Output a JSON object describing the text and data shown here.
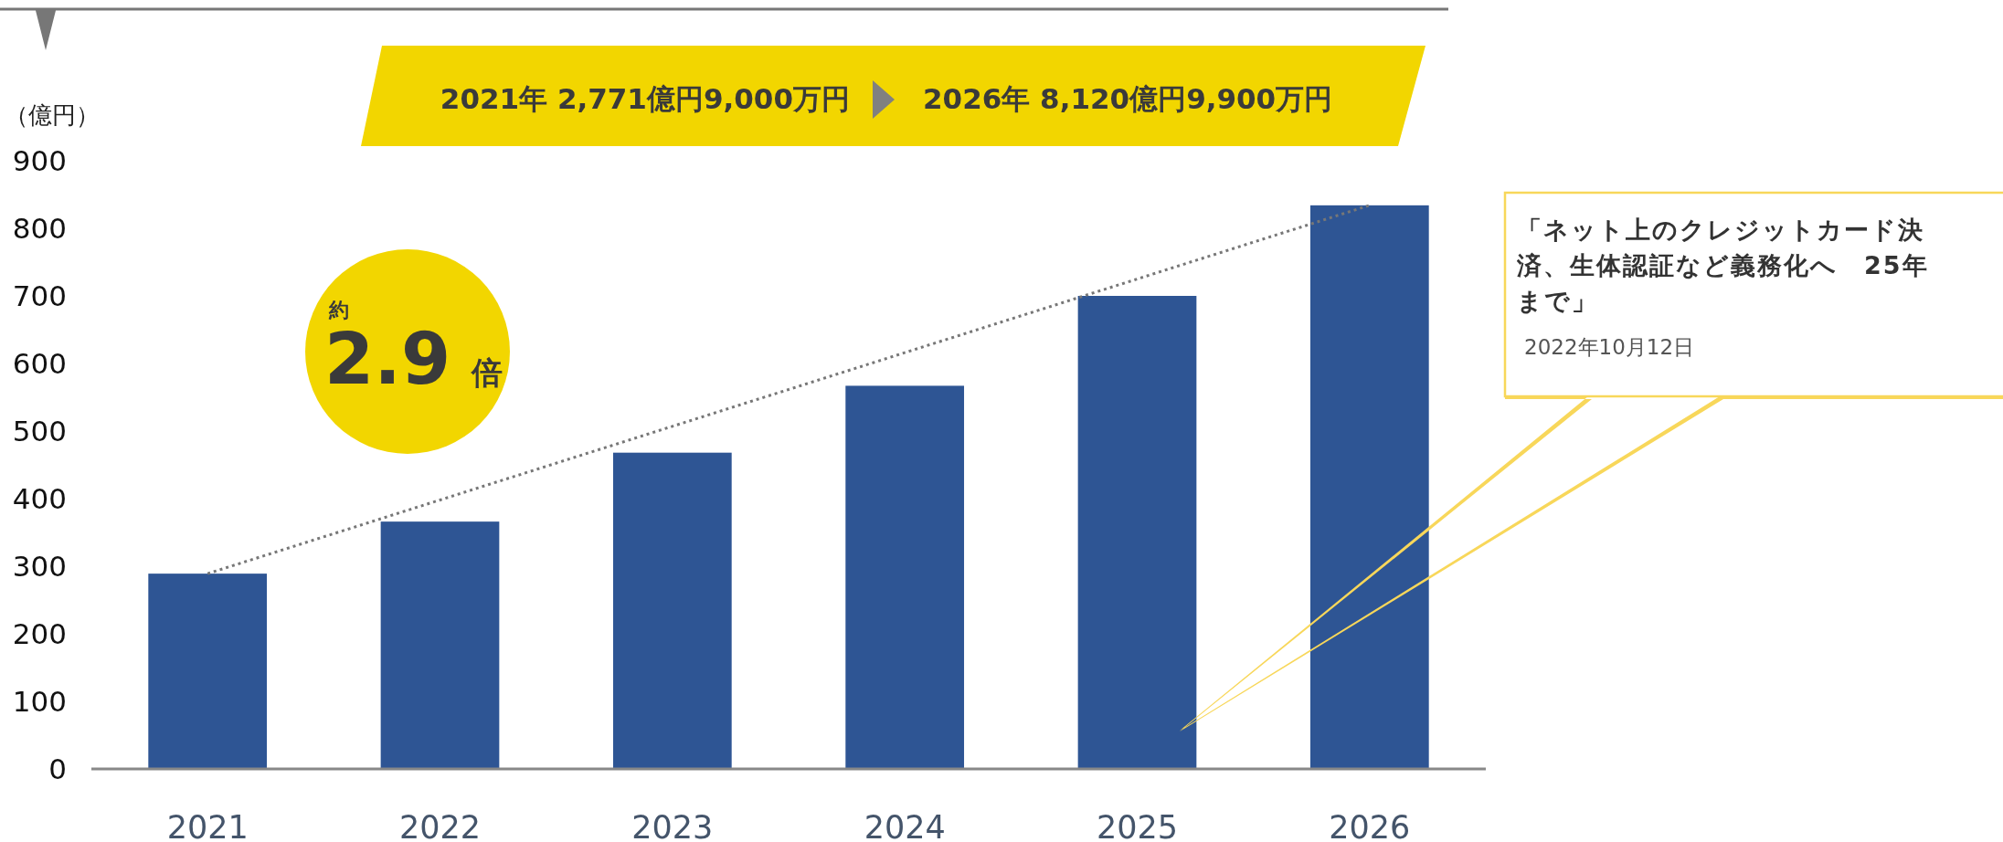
{
  "chart_data": {
    "type": "bar",
    "ylabel": "（億円）",
    "categories": [
      "2021",
      "2022",
      "2023",
      "2024",
      "2025",
      "2026"
    ],
    "values": [
      289,
      366,
      468,
      567,
      700,
      834
    ],
    "color": "#2e5594",
    "ylim": [
      0,
      900
    ],
    "yticks": [
      0,
      100,
      200,
      300,
      400,
      500,
      600,
      700,
      800,
      900
    ],
    "series": [
      {
        "type": "line",
        "values": [
          289,
          398,
          507,
          616,
          725,
          834
        ],
        "color": "#777777",
        "line_style": "dotted"
      }
    ],
    "annotations": [
      "2021年 2,771億円9,000万円",
      "2026年 8,120億円9,900万円",
      "約",
      "2.9",
      "倍",
      "「ネット上のクレジットカード決済、生体認証など義務化へ　25年まで」",
      "2022年10月12日"
    ]
  }
}
